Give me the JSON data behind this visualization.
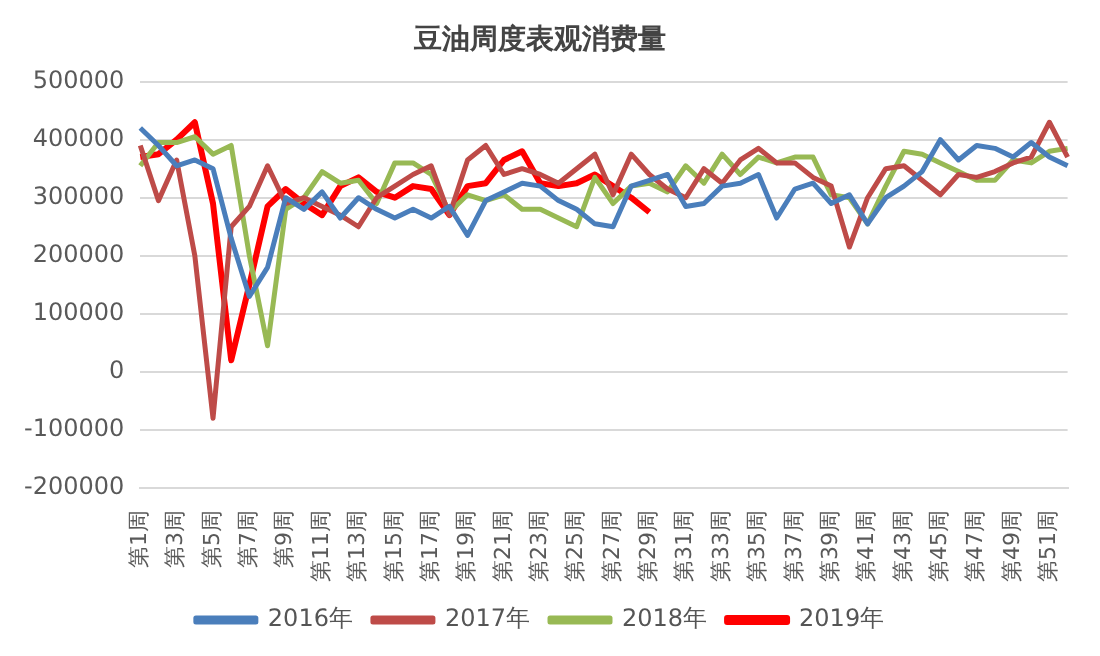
{
  "chart_data": {
    "type": "line",
    "title": "豆油周度表观消费量",
    "categories": [
      "第1周",
      null,
      "第3周",
      null,
      "第5周",
      null,
      "第7周",
      null,
      "第9周",
      null,
      "第11周",
      null,
      "第13周",
      null,
      "第15周",
      null,
      "第17周",
      null,
      "第19周",
      null,
      "第21周",
      null,
      "第23周",
      null,
      "第25周",
      null,
      "第27周",
      null,
      "第29周",
      null,
      "第31周",
      null,
      "第33周",
      null,
      "第35周",
      null,
      "第37周",
      null,
      "第39周",
      null,
      "第41周",
      null,
      "第43周",
      null,
      "第45周",
      null,
      "第47周",
      null,
      "第49周",
      null,
      "第51周",
      null
    ],
    "series": [
      {
        "name": "2016年",
        "color": "#4a7ebb",
        "values": [
          420000,
          390000,
          355000,
          365000,
          350000,
          230000,
          130000,
          180000,
          300000,
          280000,
          310000,
          265000,
          300000,
          280000,
          265000,
          280000,
          265000,
          285000,
          235000,
          295000,
          310000,
          325000,
          320000,
          295000,
          280000,
          255000,
          250000,
          320000,
          330000,
          340000,
          285000,
          290000,
          320000,
          325000,
          340000,
          265000,
          315000,
          325000,
          290000,
          305000,
          255000,
          300000,
          320000,
          345000,
          400000,
          365000,
          390000,
          385000,
          370000,
          395000,
          370000,
          355000
        ]
      },
      {
        "name": "2017年",
        "color": "#be4b48",
        "values": [
          390000,
          295000,
          365000,
          200000,
          -80000,
          250000,
          285000,
          355000,
          290000,
          300000,
          285000,
          270000,
          250000,
          300000,
          320000,
          340000,
          355000,
          270000,
          365000,
          390000,
          340000,
          350000,
          340000,
          325000,
          350000,
          375000,
          305000,
          375000,
          340000,
          315000,
          300000,
          350000,
          325000,
          365000,
          385000,
          360000,
          360000,
          335000,
          320000,
          215000,
          300000,
          350000,
          355000,
          330000,
          305000,
          340000,
          335000,
          345000,
          360000,
          370000,
          430000,
          370000
        ]
      },
      {
        "name": "2018年",
        "color": "#98b954",
        "values": [
          355000,
          395000,
          395000,
          405000,
          375000,
          390000,
          200000,
          45000,
          280000,
          300000,
          345000,
          325000,
          330000,
          290000,
          360000,
          360000,
          340000,
          275000,
          305000,
          295000,
          305000,
          280000,
          280000,
          265000,
          250000,
          335000,
          290000,
          320000,
          325000,
          310000,
          355000,
          325000,
          375000,
          340000,
          370000,
          360000,
          370000,
          370000,
          305000,
          300000,
          255000,
          320000,
          380000,
          375000,
          360000,
          345000,
          330000,
          330000,
          365000,
          360000,
          380000,
          385000
        ]
      },
      {
        "name": "2019年",
        "color": "#ff0000",
        "values": [
          370000,
          375000,
          400000,
          430000,
          290000,
          20000,
          150000,
          285000,
          315000,
          290000,
          270000,
          320000,
          335000,
          310000,
          300000,
          320000,
          315000,
          270000,
          320000,
          325000,
          365000,
          380000,
          325000,
          320000,
          325000,
          340000,
          320000,
          300000,
          275000,
          null,
          null,
          null,
          null,
          null,
          null,
          null,
          null,
          null,
          null,
          null,
          null,
          null,
          null,
          null,
          null,
          null,
          null,
          null,
          null,
          null,
          null,
          null
        ]
      }
    ],
    "ylim": [
      -200000,
      500000
    ],
    "yticks": [
      -200000,
      -100000,
      0,
      100000,
      200000,
      300000,
      400000,
      500000
    ],
    "grid": "y",
    "legend": "bottom"
  }
}
